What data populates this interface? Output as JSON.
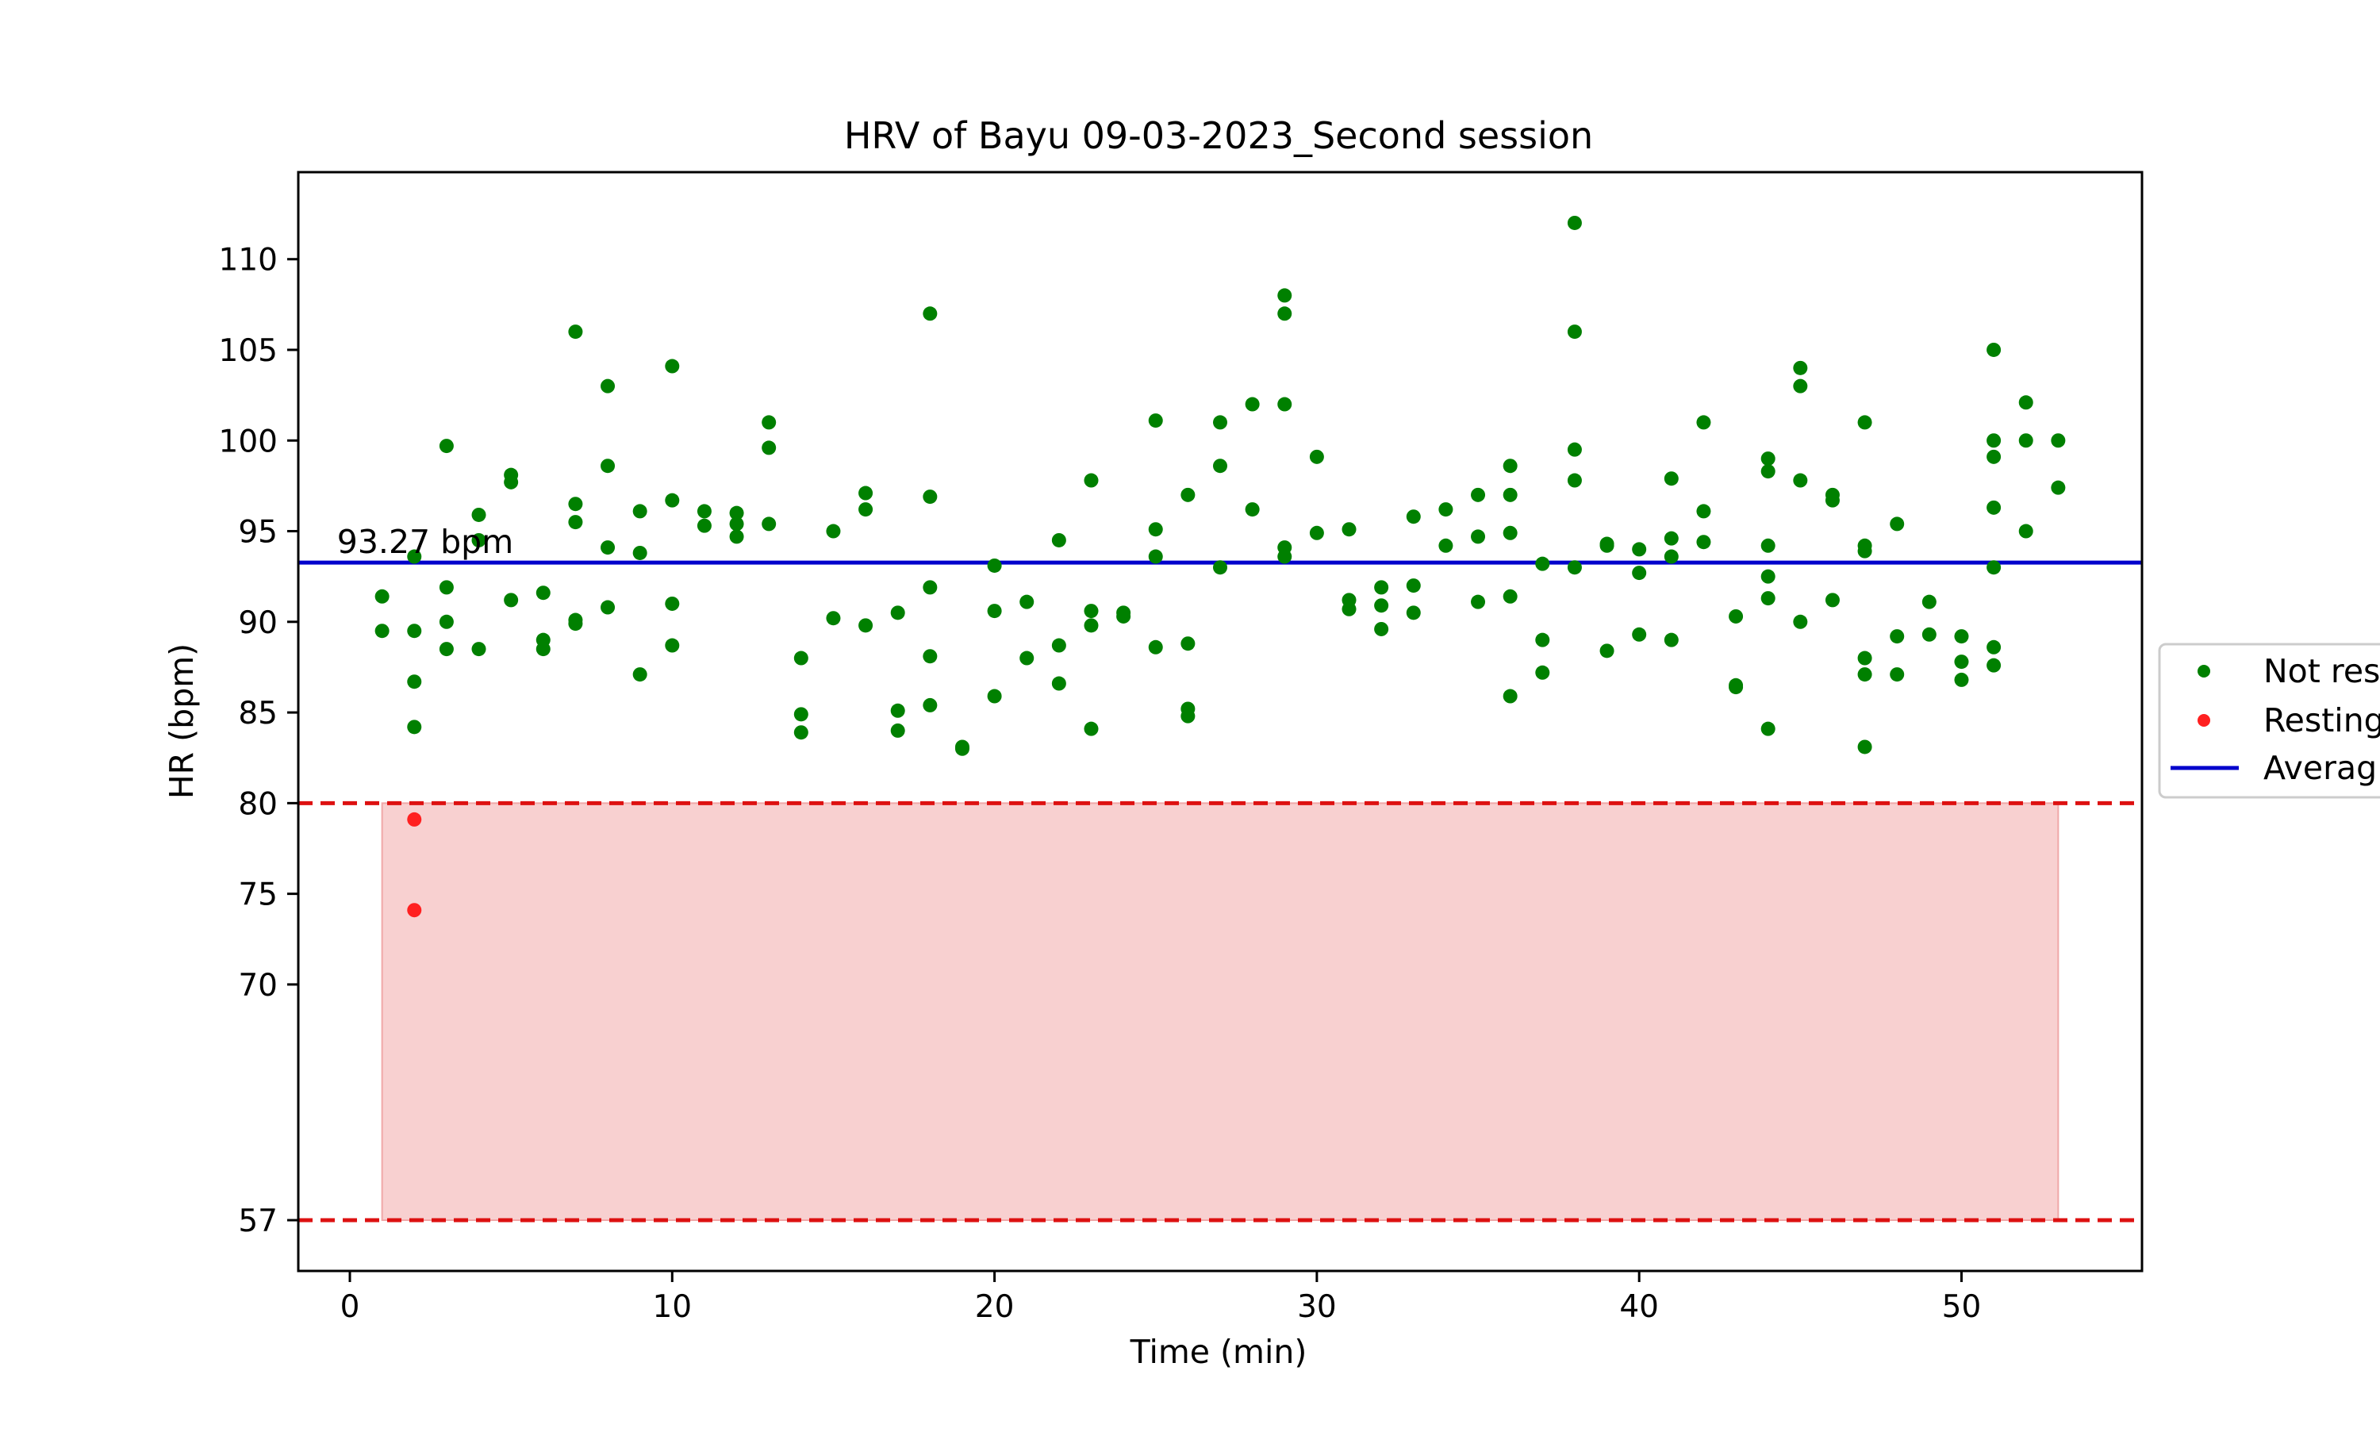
{
  "chart_data": {
    "type": "scatter",
    "title": "HRV of Bayu 09-03-2023_Second session",
    "xlabel": "Time (min)",
    "ylabel": "HR (bpm)",
    "xlim": [
      -1.6,
      55.6
    ],
    "ylim": [
      54.2,
      114.8
    ],
    "xticks": [
      0,
      10,
      20,
      30,
      40,
      50
    ],
    "yticks": [
      57,
      70,
      75,
      80,
      85,
      90,
      95,
      100,
      105,
      110
    ],
    "grid": false,
    "legend_position": "right, outside plot (clipped)",
    "average_value": 93.27,
    "average_label": "93.27 bpm",
    "resting_zone": {
      "x_start": 1,
      "x_end": 53,
      "y_low": 57,
      "y_high": 80
    },
    "colors": {
      "not_resting": "#008000",
      "resting": "#ff2020",
      "average_line": "#0000cc",
      "threshold_line": "#dd1111",
      "resting_zone_fill": "#f8d0d0"
    },
    "legend": [
      {
        "label": "Not res",
        "marker": "dot-green"
      },
      {
        "label": "Resting",
        "marker": "dot-red"
      },
      {
        "label": "Averag",
        "marker": "line-blue"
      }
    ],
    "series": [
      {
        "name": "Not resting",
        "color": "#008000",
        "points": [
          [
            1,
            91.4
          ],
          [
            1,
            89.5
          ],
          [
            2,
            93.6
          ],
          [
            2,
            89.5
          ],
          [
            2,
            86.7
          ],
          [
            2,
            84.2
          ],
          [
            3,
            99.7
          ],
          [
            3,
            91.9
          ],
          [
            3,
            90.0
          ],
          [
            3,
            88.5
          ],
          [
            4,
            95.9
          ],
          [
            4,
            94.5
          ],
          [
            4,
            88.5
          ],
          [
            5,
            98.1
          ],
          [
            5,
            97.7
          ],
          [
            5,
            91.2
          ],
          [
            6,
            91.6
          ],
          [
            6,
            89.0
          ],
          [
            6,
            88.5
          ],
          [
            7,
            106.0
          ],
          [
            7,
            96.5
          ],
          [
            7,
            95.5
          ],
          [
            7,
            90.1
          ],
          [
            7,
            89.9
          ],
          [
            8,
            103.0
          ],
          [
            8,
            98.6
          ],
          [
            8,
            94.1
          ],
          [
            8,
            90.8
          ],
          [
            9,
            96.1
          ],
          [
            9,
            93.8
          ],
          [
            9,
            87.1
          ],
          [
            10,
            104.1
          ],
          [
            10,
            96.7
          ],
          [
            10,
            91.0
          ],
          [
            10,
            88.7
          ],
          [
            11,
            96.1
          ],
          [
            11,
            95.3
          ],
          [
            12,
            96.0
          ],
          [
            12,
            95.4
          ],
          [
            12,
            94.7
          ],
          [
            13,
            101.0
          ],
          [
            13,
            99.6
          ],
          [
            13,
            95.4
          ],
          [
            14,
            88.0
          ],
          [
            14,
            84.9
          ],
          [
            14,
            83.9
          ],
          [
            15,
            95.0
          ],
          [
            15,
            90.2
          ],
          [
            16,
            97.1
          ],
          [
            16,
            96.2
          ],
          [
            16,
            89.8
          ],
          [
            17,
            90.5
          ],
          [
            17,
            85.1
          ],
          [
            17,
            84.0
          ],
          [
            18,
            107.0
          ],
          [
            18,
            96.9
          ],
          [
            18,
            91.9
          ],
          [
            18,
            88.1
          ],
          [
            18,
            85.4
          ],
          [
            19,
            83.1
          ],
          [
            19,
            83.0
          ],
          [
            20,
            93.1
          ],
          [
            20,
            90.6
          ],
          [
            20,
            85.9
          ],
          [
            21,
            91.1
          ],
          [
            21,
            88.0
          ],
          [
            22,
            94.5
          ],
          [
            22,
            88.7
          ],
          [
            22,
            86.6
          ],
          [
            23,
            97.8
          ],
          [
            23,
            90.6
          ],
          [
            23,
            89.8
          ],
          [
            23,
            84.1
          ],
          [
            24,
            90.5
          ],
          [
            24,
            90.3
          ],
          [
            25,
            101.1
          ],
          [
            25,
            95.1
          ],
          [
            25,
            93.6
          ],
          [
            25,
            88.6
          ],
          [
            26,
            97.0
          ],
          [
            26,
            88.8
          ],
          [
            26,
            85.2
          ],
          [
            26,
            84.8
          ],
          [
            27,
            101.0
          ],
          [
            27,
            98.6
          ],
          [
            27,
            93.0
          ],
          [
            28,
            102.0
          ],
          [
            28,
            96.2
          ],
          [
            29,
            108.0
          ],
          [
            29,
            107.0
          ],
          [
            29,
            102.0
          ],
          [
            29,
            94.1
          ],
          [
            29,
            93.6
          ],
          [
            30,
            99.1
          ],
          [
            30,
            94.9
          ],
          [
            31,
            95.1
          ],
          [
            31,
            91.2
          ],
          [
            31,
            90.7
          ],
          [
            32,
            91.9
          ],
          [
            32,
            90.9
          ],
          [
            32,
            89.6
          ],
          [
            33,
            95.8
          ],
          [
            33,
            92.0
          ],
          [
            33,
            90.5
          ],
          [
            34,
            96.2
          ],
          [
            34,
            94.2
          ],
          [
            35,
            97.0
          ],
          [
            35,
            94.7
          ],
          [
            35,
            91.1
          ],
          [
            36,
            98.6
          ],
          [
            36,
            97.0
          ],
          [
            36,
            94.9
          ],
          [
            36,
            91.4
          ],
          [
            36,
            85.9
          ],
          [
            37,
            93.2
          ],
          [
            37,
            89.0
          ],
          [
            37,
            87.2
          ],
          [
            38,
            112.0
          ],
          [
            38,
            106.0
          ],
          [
            38,
            99.5
          ],
          [
            38,
            97.8
          ],
          [
            38,
            93.0
          ],
          [
            39,
            94.3
          ],
          [
            39,
            94.2
          ],
          [
            39,
            88.4
          ],
          [
            40,
            94.0
          ],
          [
            40,
            92.7
          ],
          [
            40,
            89.3
          ],
          [
            41,
            97.9
          ],
          [
            41,
            94.6
          ],
          [
            41,
            93.6
          ],
          [
            41,
            89.0
          ],
          [
            42,
            101.0
          ],
          [
            42,
            96.1
          ],
          [
            42,
            94.4
          ],
          [
            43,
            90.3
          ],
          [
            43,
            86.5
          ],
          [
            43,
            86.4
          ],
          [
            44,
            99.0
          ],
          [
            44,
            98.3
          ],
          [
            44,
            94.2
          ],
          [
            44,
            92.5
          ],
          [
            44,
            91.3
          ],
          [
            44,
            84.1
          ],
          [
            45,
            104.0
          ],
          [
            45,
            103.0
          ],
          [
            45,
            97.8
          ],
          [
            45,
            90.0
          ],
          [
            46,
            97.0
          ],
          [
            46,
            96.7
          ],
          [
            46,
            91.2
          ],
          [
            47,
            101.0
          ],
          [
            47,
            94.2
          ],
          [
            47,
            93.9
          ],
          [
            47,
            88.0
          ],
          [
            47,
            87.1
          ],
          [
            47,
            83.1
          ],
          [
            48,
            95.4
          ],
          [
            48,
            89.2
          ],
          [
            48,
            87.1
          ],
          [
            49,
            91.1
          ],
          [
            49,
            89.3
          ],
          [
            50,
            89.2
          ],
          [
            50,
            87.8
          ],
          [
            50,
            86.8
          ],
          [
            51,
            105.0
          ],
          [
            51,
            100.0
          ],
          [
            51,
            99.1
          ],
          [
            51,
            96.3
          ],
          [
            51,
            93.0
          ],
          [
            51,
            88.6
          ],
          [
            51,
            87.6
          ],
          [
            52,
            102.1
          ],
          [
            52,
            100.0
          ],
          [
            52,
            95.0
          ],
          [
            53,
            100.0
          ],
          [
            53,
            97.4
          ]
        ]
      },
      {
        "name": "Resting",
        "color": "#ff2020",
        "points": [
          [
            2,
            79.1
          ],
          [
            2,
            74.1
          ]
        ]
      }
    ]
  }
}
